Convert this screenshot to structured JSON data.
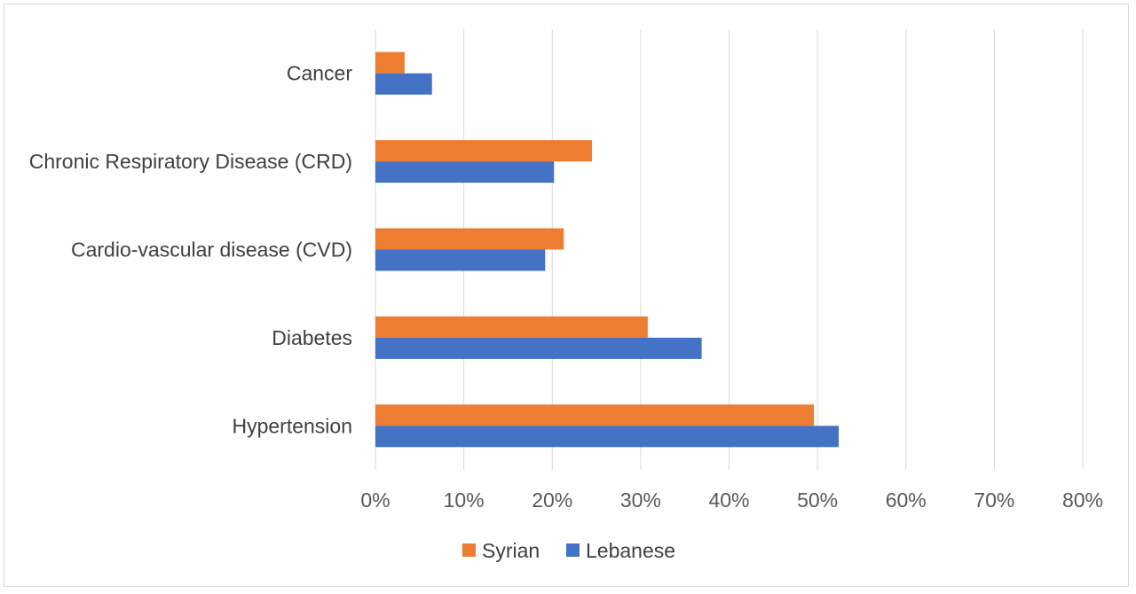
{
  "chart_data": {
    "type": "bar",
    "orientation": "horizontal",
    "categories": [
      "Cancer",
      "Chronic Respiratory Disease (CRD)",
      "Cardio-vascular disease (CVD)",
      "Diabetes",
      "Hypertension"
    ],
    "series": [
      {
        "name": "Syrian",
        "color": "#ed7d31",
        "values": [
          3.3,
          24.5,
          21.3,
          30.8,
          49.6
        ]
      },
      {
        "name": "Lebanese",
        "color": "#4472c4",
        "values": [
          6.4,
          20.2,
          19.2,
          36.9,
          52.4
        ]
      }
    ],
    "x_ticks": [
      "0%",
      "10%",
      "20%",
      "30%",
      "40%",
      "50%",
      "60%",
      "70%",
      "80%"
    ],
    "xlim": [
      0,
      80
    ],
    "grid": true,
    "legend_position": "bottom",
    "title": "",
    "xlabel": "",
    "ylabel": ""
  }
}
